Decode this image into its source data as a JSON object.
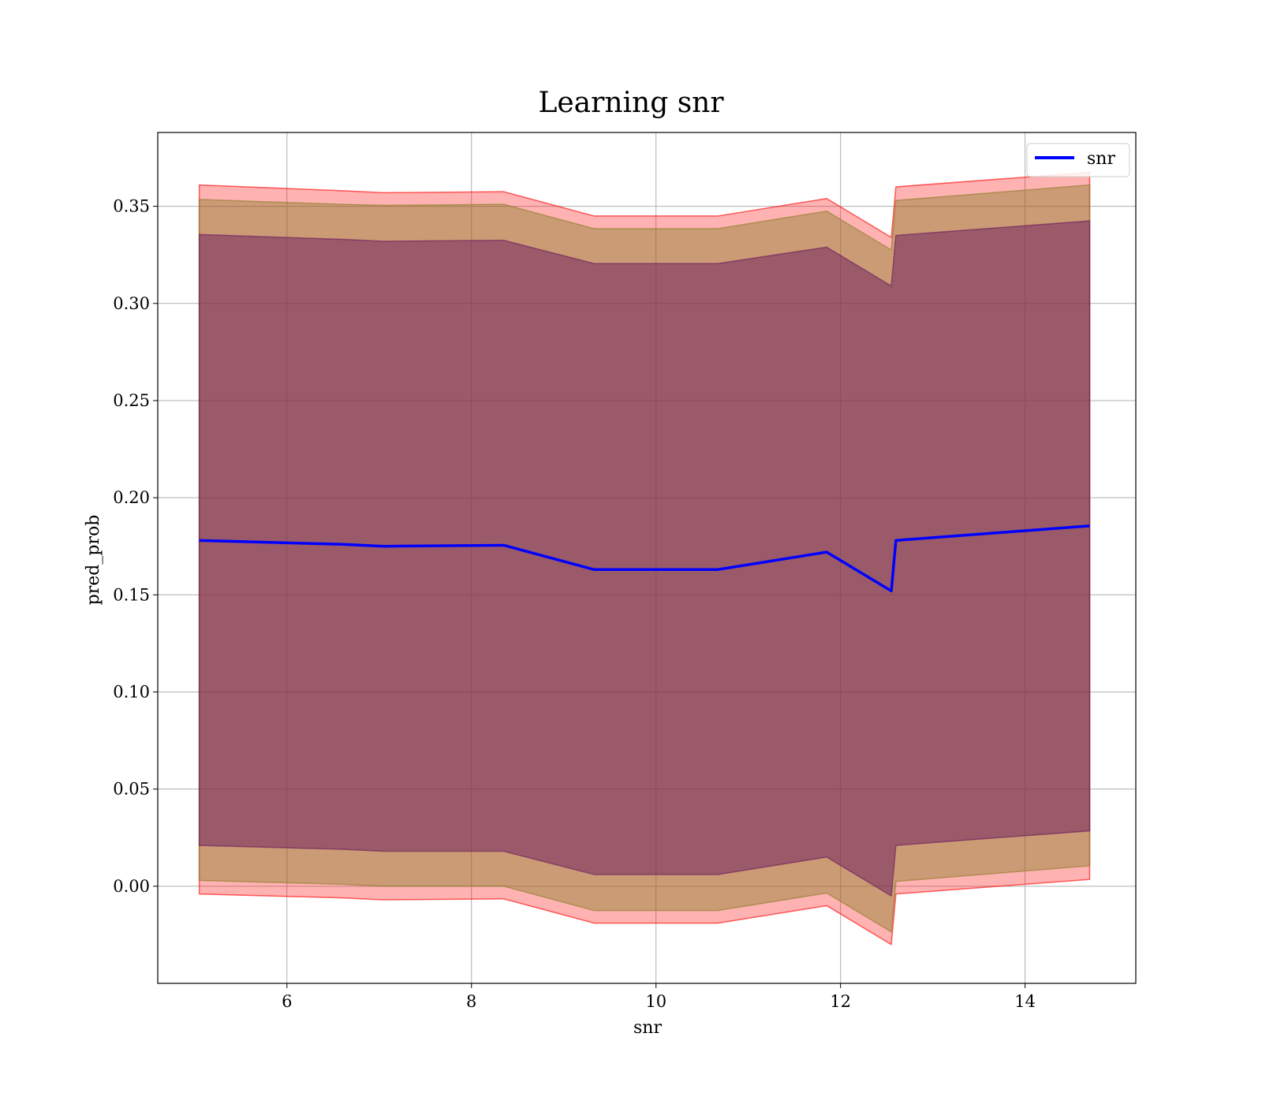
{
  "chart_data": {
    "type": "line",
    "title": "Learning snr",
    "xlabel": "snr",
    "ylabel": "pred_prob",
    "xlim": [
      4.6,
      15.2
    ],
    "ylim": [
      -0.05,
      0.388
    ],
    "grid": true,
    "legend": {
      "placement": "top-right",
      "entries": [
        "snr"
      ]
    },
    "x_ticks": [
      6,
      8,
      10,
      12,
      14
    ],
    "y_ticks": [
      0.0,
      0.05,
      0.1,
      0.15,
      0.2,
      0.25,
      0.3,
      0.35
    ],
    "x_tick_labels": [
      "6",
      "8",
      "10",
      "12",
      "14"
    ],
    "y_tick_labels": [
      "0.00",
      "0.05",
      "0.10",
      "0.15",
      "0.20",
      "0.25",
      "0.30",
      "0.35"
    ],
    "x": [
      5.05,
      6.6,
      7.05,
      8.35,
      9.33,
      10.67,
      11.85,
      12.55,
      12.6,
      14.7
    ],
    "series": [
      {
        "name": "snr",
        "color": "#0000ff",
        "values": [
          0.178,
          0.176,
          0.175,
          0.1755,
          0.163,
          0.163,
          0.172,
          0.152,
          0.178,
          0.1855
        ]
      }
    ],
    "bands": [
      {
        "level": "outer",
        "color": "#ff0000",
        "opacity": 0.3,
        "upper": [
          0.361,
          0.358,
          0.357,
          0.3575,
          0.345,
          0.345,
          0.354,
          0.334,
          0.36,
          0.3675
        ],
        "lower": [
          -0.004,
          -0.006,
          -0.007,
          -0.0065,
          -0.019,
          -0.019,
          -0.01,
          -0.03,
          -0.004,
          0.0035
        ]
      },
      {
        "level": "middle",
        "color": "#8c7f2a",
        "opacity": 0.45,
        "upper": [
          0.3535,
          0.351,
          0.3505,
          0.351,
          0.3385,
          0.3385,
          0.3475,
          0.3275,
          0.353,
          0.361
        ],
        "lower": [
          0.003,
          0.001,
          0.0,
          0.0,
          -0.0125,
          -0.0125,
          -0.0035,
          -0.0235,
          0.0025,
          0.0105
        ]
      },
      {
        "level": "inner",
        "color": "#6b1a5e",
        "opacity": 0.5,
        "upper": [
          0.3355,
          0.333,
          0.332,
          0.3325,
          0.3205,
          0.3205,
          0.329,
          0.309,
          0.335,
          0.3425
        ],
        "lower": [
          0.021,
          0.019,
          0.018,
          0.018,
          0.006,
          0.006,
          0.015,
          -0.005,
          0.021,
          0.0285
        ]
      }
    ]
  }
}
